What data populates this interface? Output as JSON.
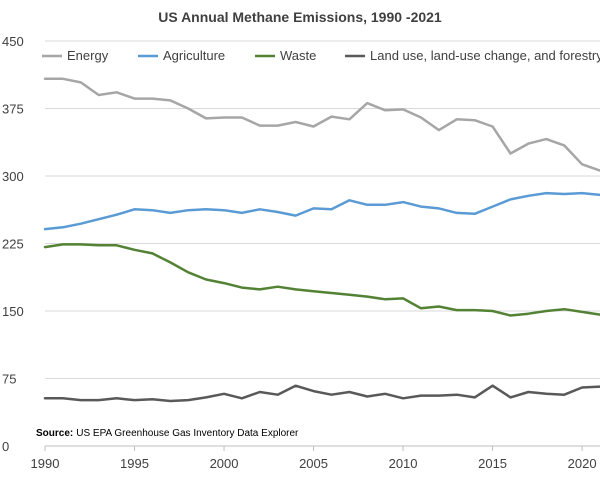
{
  "chart_data": {
    "type": "line",
    "title": "US Annual Methane Emissions, 1990 -2021",
    "xlabel": "",
    "ylabel": "",
    "ylim": [
      0,
      450
    ],
    "xlim": [
      1990,
      2021
    ],
    "yticks": [
      0,
      75,
      150,
      225,
      300,
      375,
      450
    ],
    "xticks": [
      1990,
      1995,
      2000,
      2005,
      2010,
      2015,
      2020
    ],
    "xtick_labels": [
      "1990",
      "1995",
      "2000",
      "2005",
      "2010",
      "2015",
      "2020"
    ],
    "grid": true,
    "legend_position": "top",
    "source_label": "Source:",
    "source_text": "US EPA Greenhouse Gas Inventory Data Explorer",
    "x": [
      1990,
      1991,
      1992,
      1993,
      1994,
      1995,
      1996,
      1997,
      1998,
      1999,
      2000,
      2001,
      2002,
      2003,
      2004,
      2005,
      2006,
      2007,
      2008,
      2009,
      2010,
      2011,
      2012,
      2013,
      2014,
      2015,
      2016,
      2017,
      2018,
      2019,
      2020,
      2021
    ],
    "series": [
      {
        "name": "Energy",
        "color": "#a6a6a6",
        "values": [
          408,
          408,
          404,
          390,
          393,
          386,
          386,
          384,
          375,
          364,
          365,
          365,
          356,
          356,
          360,
          355,
          366,
          363,
          381,
          373,
          374,
          365,
          351,
          363,
          362,
          355,
          325,
          336,
          341,
          334,
          313,
          306
        ]
      },
      {
        "name": "Agriculture",
        "color": "#5b9bd5",
        "values": [
          241,
          243,
          247,
          252,
          257,
          263,
          262,
          259,
          262,
          263,
          262,
          259,
          263,
          260,
          256,
          264,
          263,
          273,
          268,
          268,
          271,
          266,
          264,
          259,
          258,
          266,
          274,
          278,
          281,
          280,
          281,
          279
        ]
      },
      {
        "name": "Waste",
        "color": "#548235",
        "values": [
          221,
          224,
          224,
          223,
          223,
          218,
          214,
          204,
          193,
          185,
          181,
          176,
          174,
          177,
          174,
          172,
          170,
          168,
          166,
          163,
          164,
          153,
          155,
          151,
          151,
          150,
          145,
          147,
          150,
          152,
          149,
          146
        ]
      },
      {
        "name": "Land use, land-use change, and forestry",
        "color": "#595959",
        "values": [
          53,
          53,
          51,
          51,
          53,
          51,
          52,
          50,
          51,
          54,
          58,
          53,
          60,
          57,
          67,
          61,
          57,
          60,
          55,
          58,
          53,
          56,
          56,
          57,
          54,
          67,
          54,
          60,
          58,
          57,
          65,
          66
        ]
      }
    ]
  }
}
